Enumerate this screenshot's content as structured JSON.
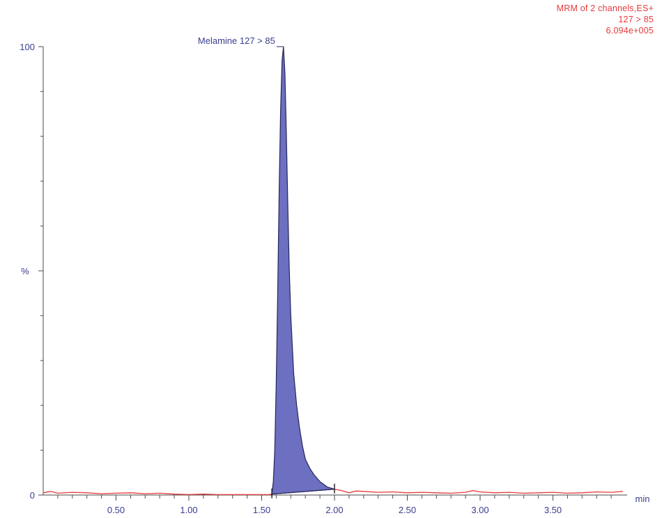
{
  "header": {
    "line1": "MRM of 2 channels,ES+",
    "line2": "127 > 85",
    "line3": "6.094e+005",
    "color": "#e8383a"
  },
  "chart_data": {
    "type": "line",
    "xlabel": "min",
    "ylabel": "%",
    "xlim": [
      0,
      4.0
    ],
    "ylim": [
      0,
      100
    ],
    "x_ticks": [
      0.5,
      1.0,
      1.5,
      2.0,
      2.5,
      3.0,
      3.5
    ],
    "x_tick_labels": [
      "0.50",
      "1.00",
      "1.50",
      "2.00",
      "2.50",
      "3.00",
      "3.50"
    ],
    "y_tick_labels": [
      "0",
      "100"
    ],
    "series": [
      {
        "color": "#e8383a",
        "x": [
          0.0,
          0.05,
          0.1,
          0.2,
          0.3,
          0.4,
          0.5,
          0.6,
          0.7,
          0.8,
          0.9,
          1.0,
          1.1,
          1.2,
          1.3,
          1.4,
          1.5,
          1.55,
          1.57
        ],
        "y": [
          0.5,
          0.8,
          0.4,
          0.6,
          0.5,
          0.3,
          0.4,
          0.5,
          0.3,
          0.4,
          0.2,
          0.1,
          0.2,
          0.1,
          0.1,
          0.1,
          0.1,
          0.1,
          0.2
        ]
      },
      {
        "color": "#e8383a",
        "x": [
          2.0,
          2.05,
          2.1,
          2.15,
          2.2,
          2.3,
          2.4,
          2.5,
          2.6,
          2.7,
          2.8,
          2.9,
          2.95,
          3.0,
          3.1,
          3.2,
          3.3,
          3.4,
          3.5,
          3.6,
          3.7,
          3.8,
          3.9,
          3.98
        ],
        "y": [
          1.3,
          1.0,
          0.5,
          0.9,
          0.8,
          0.6,
          0.7,
          0.5,
          0.6,
          0.5,
          0.4,
          0.6,
          1.0,
          0.7,
          0.5,
          0.6,
          0.4,
          0.5,
          0.6,
          0.4,
          0.5,
          0.7,
          0.6,
          0.8
        ]
      }
    ],
    "peak": {
      "label": "Melamine 127 > 85",
      "fill": "#6d6fc0",
      "stroke": "#252659",
      "apex_rt": 1.65,
      "x": [
        1.57,
        1.58,
        1.59,
        1.6,
        1.61,
        1.62,
        1.63,
        1.64,
        1.65,
        1.66,
        1.67,
        1.68,
        1.69,
        1.7,
        1.72,
        1.74,
        1.76,
        1.78,
        1.8,
        1.83,
        1.86,
        1.9,
        1.95,
        2.0
      ],
      "y": [
        0.2,
        3,
        10,
        25,
        45,
        68,
        86,
        97,
        100,
        94,
        80,
        64,
        50,
        40,
        27,
        20,
        15,
        11,
        8,
        6,
        4.5,
        3,
        1.8,
        1.3
      ],
      "baseline_start": [
        1.57,
        0.2
      ],
      "baseline_end": [
        2.0,
        1.3
      ]
    }
  }
}
